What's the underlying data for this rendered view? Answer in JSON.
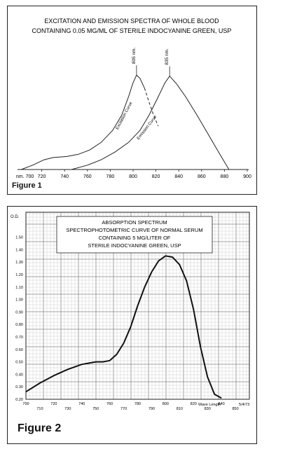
{
  "chart_data": [
    {
      "type": "line",
      "title": "EXCITATION AND EMISSION SPECTRA OF WHOLE BLOOD\nCONTAINING 0.05 MG/ML OF STERILE INDOCYANINE GREEN, USP",
      "figure_label": "Figure 1",
      "x_unit_label": "nm. 700",
      "xlim": [
        700,
        900
      ],
      "x_ticks": [
        720,
        740,
        760,
        780,
        800,
        820,
        840,
        860,
        880,
        900
      ],
      "grid": false,
      "series": [
        {
          "name": "Excitation Curve",
          "peak_label": "805 nm.",
          "points": [
            [
              702,
              0.0
            ],
            [
              712,
              0.04
            ],
            [
              722,
              0.09
            ],
            [
              730,
              0.11
            ],
            [
              742,
              0.12
            ],
            [
              752,
              0.14
            ],
            [
              762,
              0.18
            ],
            [
              772,
              0.25
            ],
            [
              782,
              0.36
            ],
            [
              790,
              0.5
            ],
            [
              796,
              0.67
            ],
            [
              800,
              0.8
            ],
            [
              803,
              0.87
            ],
            [
              806,
              0.84
            ],
            [
              810,
              0.75
            ]
          ]
        },
        {
          "name": "Emission Curve",
          "peak_label": "835 nm.",
          "points": [
            [
              746,
              0.0
            ],
            [
              760,
              0.04
            ],
            [
              772,
              0.09
            ],
            [
              784,
              0.16
            ],
            [
              796,
              0.25
            ],
            [
              806,
              0.36
            ],
            [
              814,
              0.5
            ],
            [
              822,
              0.67
            ],
            [
              828,
              0.8
            ],
            [
              832,
              0.86
            ],
            [
              838,
              0.79
            ],
            [
              846,
              0.67
            ],
            [
              856,
              0.5
            ],
            [
              866,
              0.32
            ],
            [
              876,
              0.14
            ],
            [
              884,
              0.0
            ]
          ]
        },
        {
          "name": "",
          "style": "dashed",
          "points": [
            [
              810,
              0.75
            ],
            [
              814,
              0.62
            ],
            [
              818,
              0.5
            ],
            [
              822,
              0.4
            ]
          ]
        }
      ]
    },
    {
      "type": "line",
      "title": "ABSORPTION SPECTRUM\nSPECTROPHOTOMETRIC CURVE OF NORMAL SERUM\nCONTAINING 5 MG/LITER OF\nSTERILE INDOCYANINE GREEN, USP",
      "figure_label": "Figure 2",
      "ylabel": "O.D.",
      "xlabel": "Wave Length",
      "date_label": "5/4/73",
      "ylim": [
        0.2,
        1.7
      ],
      "y_ticks": [
        "0.20",
        "0.30",
        "0.40",
        "0.50",
        "0.60",
        "0.70",
        "0.80",
        "0.90",
        "1.00",
        "1.10",
        "1.20",
        "1.30",
        "1.40",
        "1.50"
      ],
      "x_ticks_upper": [
        "700",
        "720",
        "740",
        "760",
        "780",
        "800",
        "820",
        "840"
      ],
      "x_ticks_lower": [
        "710",
        "730",
        "750",
        "770",
        "790",
        "810",
        "830",
        "850"
      ],
      "xlim": [
        700,
        860
      ],
      "grid": true,
      "series": [
        {
          "name": "",
          "points": [
            [
              700,
              0.26
            ],
            [
              710,
              0.33
            ],
            [
              720,
              0.39
            ],
            [
              730,
              0.44
            ],
            [
              740,
              0.48
            ],
            [
              750,
              0.5
            ],
            [
              755,
              0.5
            ],
            [
              760,
              0.51
            ],
            [
              765,
              0.56
            ],
            [
              770,
              0.65
            ],
            [
              775,
              0.78
            ],
            [
              780,
              0.95
            ],
            [
              785,
              1.1
            ],
            [
              790,
              1.22
            ],
            [
              795,
              1.31
            ],
            [
              800,
              1.35
            ],
            [
              805,
              1.34
            ],
            [
              810,
              1.28
            ],
            [
              815,
              1.15
            ],
            [
              820,
              0.92
            ],
            [
              825,
              0.62
            ],
            [
              830,
              0.38
            ],
            [
              835,
              0.24
            ],
            [
              840,
              0.21
            ]
          ]
        }
      ]
    }
  ]
}
